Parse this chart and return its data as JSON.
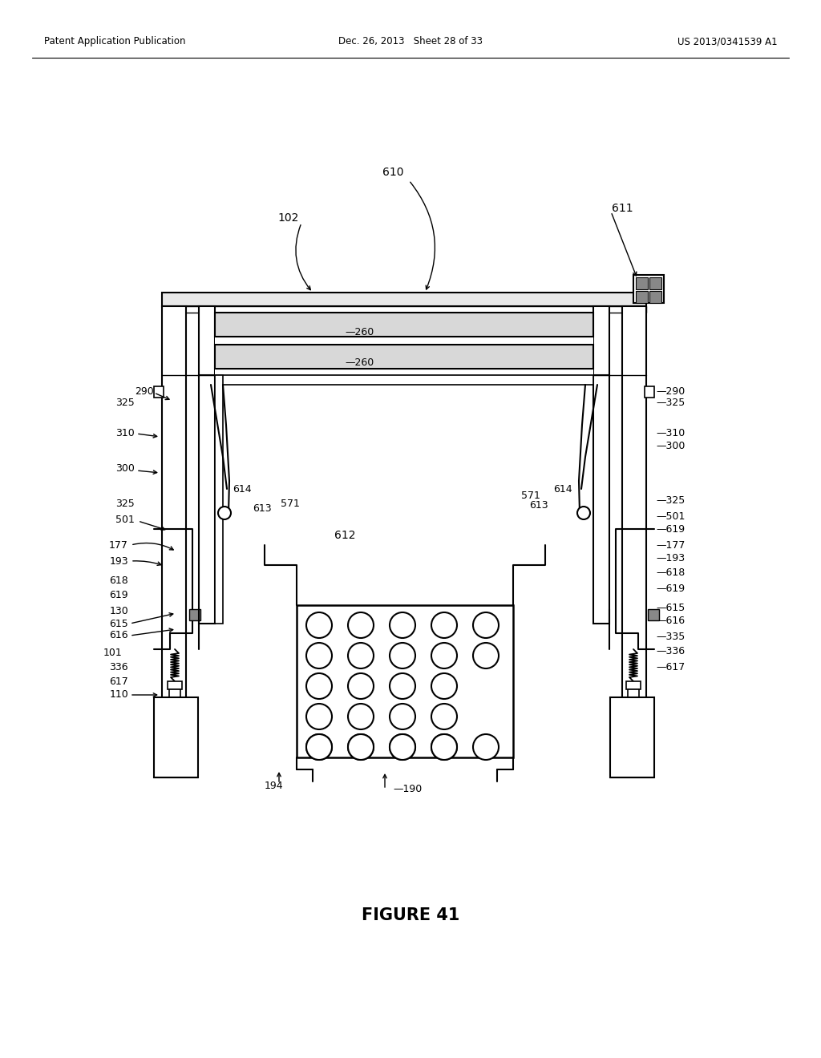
{
  "bg_color": "#ffffff",
  "line_color": "#000000",
  "header_left": "Patent Application Publication",
  "header_mid": "Dec. 26, 2013   Sheet 28 of 33",
  "header_right": "US 2013/0341539 A1",
  "figure_caption": "FIGURE 41"
}
